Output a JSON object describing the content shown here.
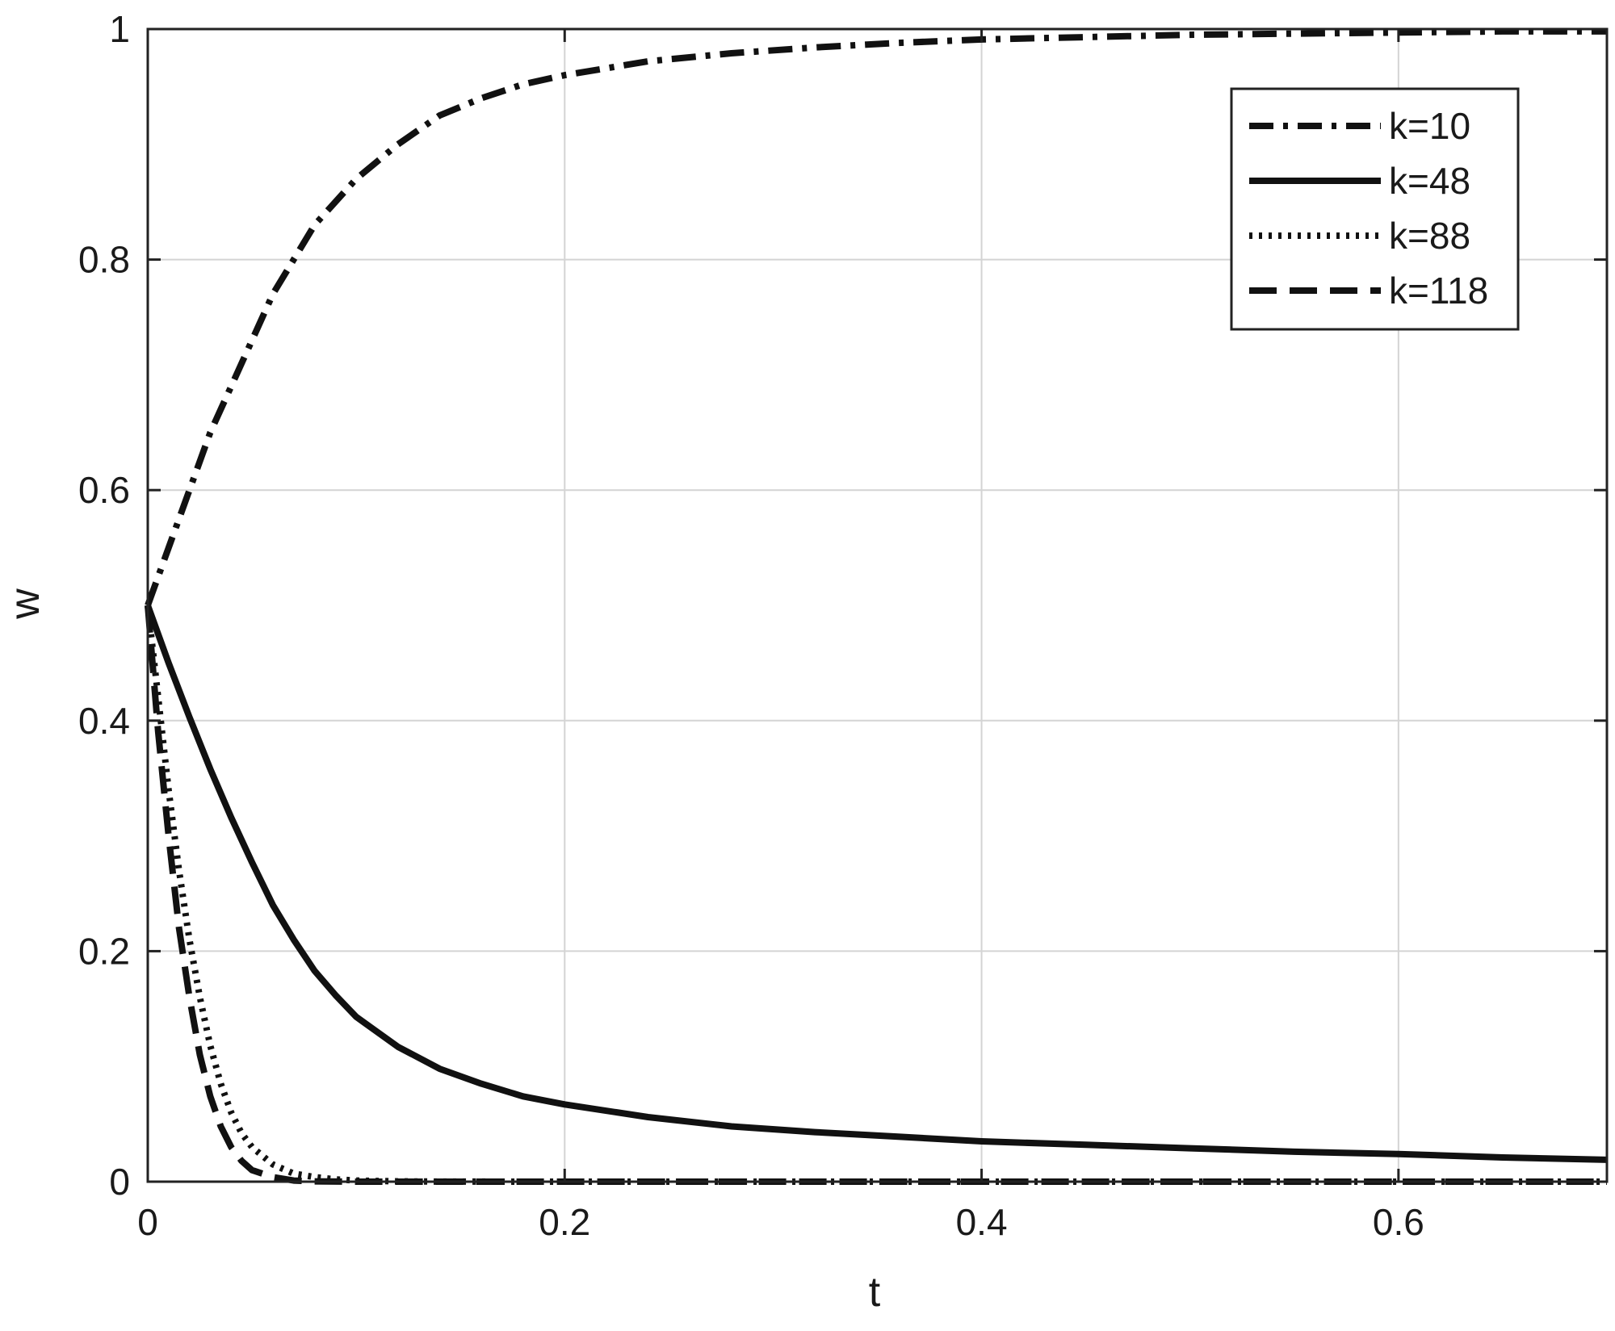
{
  "chart_data": {
    "type": "line",
    "xlabel": "t",
    "ylabel": "w",
    "xlim": [
      0,
      0.7
    ],
    "ylim": [
      0,
      1
    ],
    "xticks": [
      "0",
      "0.2",
      "0.4",
      "0.6"
    ],
    "yticks": [
      "0",
      "0.2",
      "0.4",
      "0.6",
      "0.8",
      "1"
    ],
    "grid": true,
    "legend_position": "top-right",
    "series": [
      {
        "name": "k=10",
        "style": "dashdot",
        "x": [
          0,
          0.01,
          0.02,
          0.03,
          0.04,
          0.05,
          0.06,
          0.07,
          0.08,
          0.09,
          0.1,
          0.12,
          0.14,
          0.16,
          0.18,
          0.2,
          0.24,
          0.28,
          0.32,
          0.36,
          0.4,
          0.45,
          0.5,
          0.55,
          0.6,
          0.65,
          0.7
        ],
        "y": [
          0.5,
          0.55,
          0.6,
          0.65,
          0.69,
          0.73,
          0.77,
          0.8,
          0.83,
          0.85,
          0.87,
          0.9,
          0.925,
          0.94,
          0.952,
          0.96,
          0.972,
          0.979,
          0.984,
          0.988,
          0.991,
          0.993,
          0.995,
          0.996,
          0.997,
          0.998,
          0.998
        ]
      },
      {
        "name": "k=48",
        "style": "solid",
        "x": [
          0,
          0.01,
          0.02,
          0.03,
          0.04,
          0.05,
          0.06,
          0.07,
          0.08,
          0.09,
          0.1,
          0.12,
          0.14,
          0.16,
          0.18,
          0.2,
          0.24,
          0.28,
          0.32,
          0.36,
          0.4,
          0.45,
          0.5,
          0.55,
          0.6,
          0.65,
          0.7
        ],
        "y": [
          0.5,
          0.45,
          0.403,
          0.358,
          0.316,
          0.277,
          0.24,
          0.21,
          0.183,
          0.162,
          0.143,
          0.117,
          0.098,
          0.085,
          0.074,
          0.067,
          0.056,
          0.048,
          0.043,
          0.039,
          0.035,
          0.032,
          0.029,
          0.026,
          0.024,
          0.021,
          0.019
        ]
      },
      {
        "name": "k=88",
        "style": "dotted",
        "x": [
          0,
          0.005,
          0.01,
          0.015,
          0.02,
          0.025,
          0.03,
          0.035,
          0.04,
          0.045,
          0.05,
          0.06,
          0.07,
          0.08,
          0.09,
          0.1,
          0.12,
          0.14,
          0.2,
          0.3,
          0.4,
          0.5,
          0.6,
          0.7
        ],
        "y": [
          0.5,
          0.42,
          0.34,
          0.27,
          0.21,
          0.16,
          0.118,
          0.085,
          0.06,
          0.042,
          0.03,
          0.015,
          0.007,
          0.004,
          0.002,
          0.001,
          0.0003,
          0.0001,
          0,
          0,
          0,
          0,
          0,
          0
        ]
      },
      {
        "name": "k=118",
        "style": "dashed",
        "x": [
          0,
          0.005,
          0.01,
          0.015,
          0.02,
          0.025,
          0.03,
          0.035,
          0.04,
          0.045,
          0.05,
          0.06,
          0.07,
          0.08,
          0.1,
          0.2,
          0.3,
          0.4,
          0.5,
          0.6,
          0.7
        ],
        "y": [
          0.5,
          0.39,
          0.3,
          0.22,
          0.16,
          0.11,
          0.074,
          0.048,
          0.03,
          0.018,
          0.01,
          0.004,
          0.001,
          0.0003,
          0,
          0,
          0,
          0,
          0,
          0,
          0
        ]
      }
    ]
  }
}
